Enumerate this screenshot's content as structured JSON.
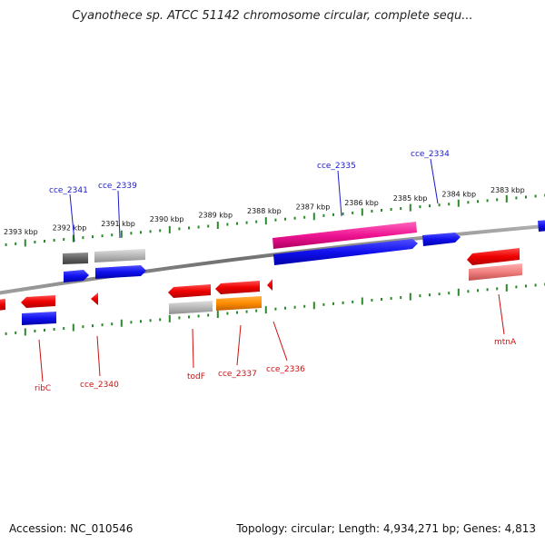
{
  "title": "Cyanothece sp. ATCC 51142 chromosome circular, complete sequ...",
  "footer": {
    "accession": "Accession: NC_010546",
    "summary": "Topology: circular; Length: 4,934,271 bp; Genes: 4,813"
  },
  "colors": {
    "backbone": "#808080",
    "tick": "#2a8a2a",
    "top_label": "#1a1acc",
    "bottom_label": "#cc1111",
    "red": "#ee0000",
    "blue": "#1010ee",
    "grey_light": "#b8b8b8",
    "grey_dark": "#606060",
    "magenta": "#ee1493",
    "orange": "#ff8c00",
    "pink": "#f08080"
  },
  "kbp_ticks": [
    "2393 kbp",
    "2392 kbp",
    "2391 kbp",
    "2390 kbp",
    "2389 kbp",
    "2388 kbp",
    "2387 kbp",
    "2386 kbp",
    "2385 kbp",
    "2384 kbp",
    "2383 kbp"
  ],
  "top_labels": [
    {
      "name": "cce_2341"
    },
    {
      "name": "cce_2339"
    },
    {
      "name": "cce_2335"
    },
    {
      "name": "cce_2334"
    }
  ],
  "bottom_labels": [
    {
      "name": "ribC"
    },
    {
      "name": "cce_2340"
    },
    {
      "name": "todF"
    },
    {
      "name": "cce_2337"
    },
    {
      "name": "cce_2336"
    },
    {
      "name": "mtnA"
    }
  ]
}
